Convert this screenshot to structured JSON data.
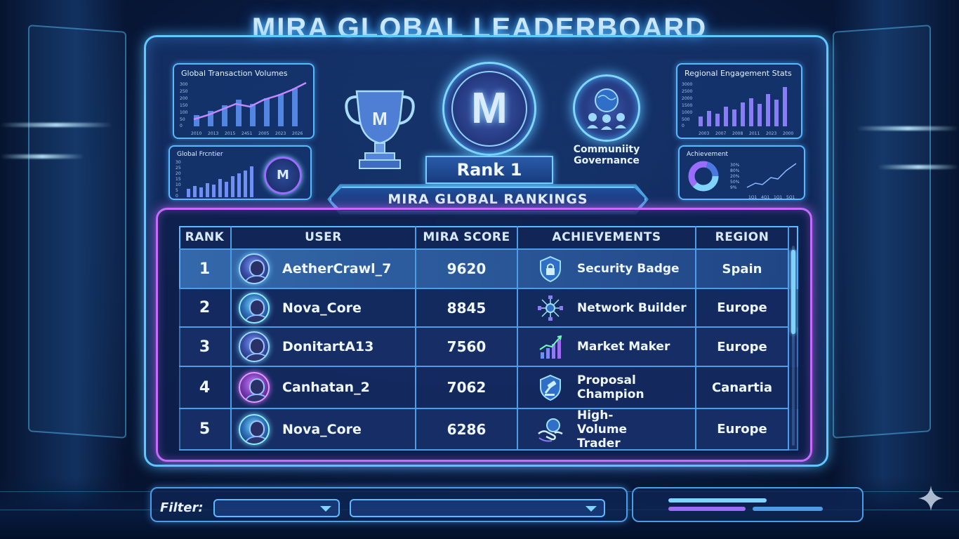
{
  "title": "MIRA GLOBAL LEADERBOARD",
  "panels": {
    "global_transactions": {
      "title": "Global Transaction Volumes",
      "y_ticks": [
        "300",
        "250",
        "200",
        "150",
        "100",
        "50",
        "0"
      ],
      "x_ticks": [
        "2010",
        "2013",
        "2015",
        "2451",
        "2005",
        "2023",
        "2026"
      ]
    },
    "global_frontier": {
      "title": "Global Frcntier",
      "y_ticks": [
        "30",
        "25",
        "20",
        "15",
        "10",
        "5",
        "0"
      ],
      "logo_letter": "M"
    },
    "regional_engagement": {
      "title": "Regional Engagement Stats",
      "y_ticks": [
        "3000",
        "2500",
        "2000",
        "1500",
        "1000",
        "500",
        "0"
      ],
      "x_ticks": [
        "2003",
        "2007",
        "2008",
        "2011",
        "2023",
        "2000"
      ]
    },
    "achievement": {
      "title": "Achievement",
      "legend": [
        "30%",
        "80%",
        "20%",
        "50%",
        "9%"
      ],
      "x_ticks": [
        "1Q1",
        "4Q1",
        "1Q1",
        "5Q1"
      ]
    }
  },
  "emblems": {
    "trophy_letter": "M",
    "center_letter": "M",
    "community_label": "Communiity Governance"
  },
  "rank_plate": "Rank 1",
  "rankings_banner": "MIRA GLOBAL RANKINGS",
  "table": {
    "headers": {
      "rank": "RANK",
      "user": "USER",
      "score": "MIRA SCORE",
      "achievements": "ACHIEVEMENTS",
      "region": "REGION"
    },
    "rows": [
      {
        "rank": "1",
        "user": "AetherCrawl_7",
        "score": "9620",
        "achievement": "Security Badge",
        "achievement_icon": "shield-lock-icon",
        "region": "Spain"
      },
      {
        "rank": "2",
        "user": "Nova_Core",
        "score": "8845",
        "achievement": "Network Builder",
        "achievement_icon": "network-icon",
        "region": "Europe"
      },
      {
        "rank": "3",
        "user": "DonitartA13",
        "score": "7560",
        "achievement": "Market Maker",
        "achievement_icon": "growth-chart-icon",
        "region": "Europe"
      },
      {
        "rank": "4",
        "user": "Canhatan_2",
        "score": "7062",
        "achievement": "Proposal Champion",
        "achievement_icon": "gavel-shield-icon",
        "region": "Canartia"
      },
      {
        "rank": "5",
        "user": "Nova_Core",
        "score": "6286",
        "achievement": "High-Volume Trader",
        "achievement_icon": "handshake-coin-icon",
        "region": "Europe"
      }
    ]
  },
  "filter": {
    "label": "Filter:",
    "dropdown_1_value": "",
    "dropdown_2_value": ""
  },
  "colors": {
    "accent": "#5fc8ff",
    "table_border": "#c56bff",
    "background": "#0a1d44"
  }
}
